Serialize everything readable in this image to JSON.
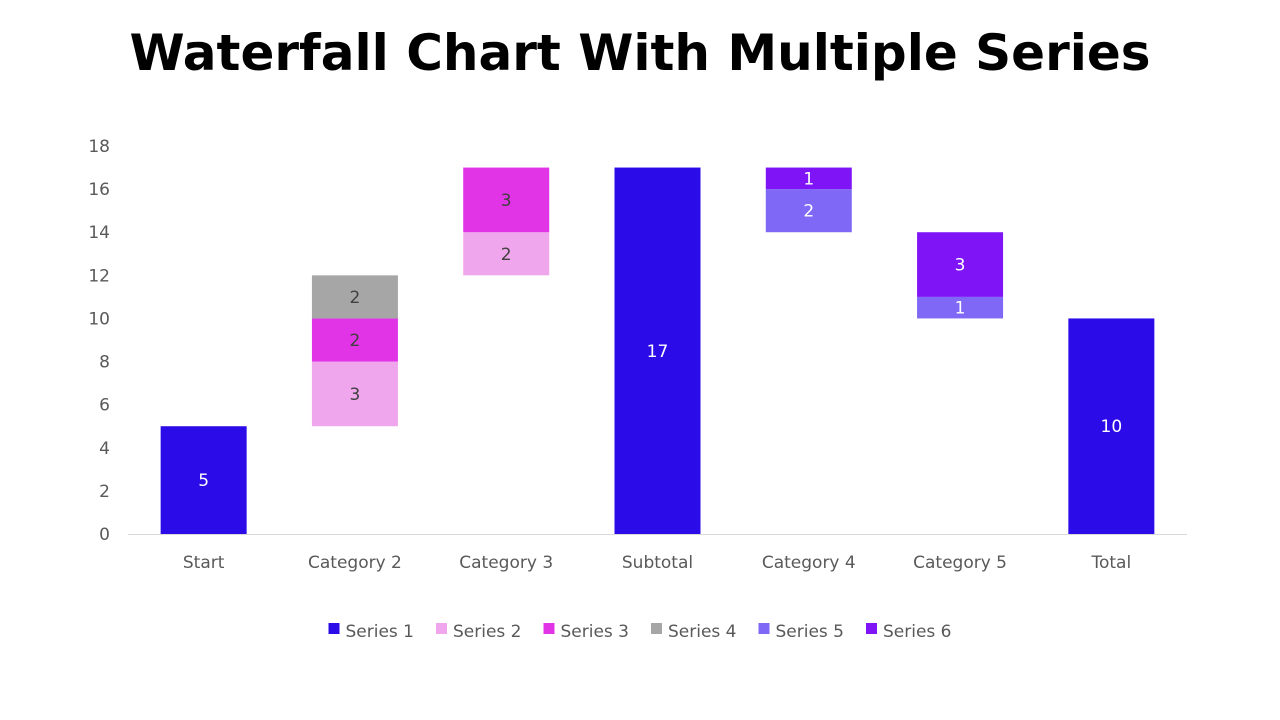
{
  "chart_data": {
    "type": "bar",
    "subtype": "stacked-waterfall",
    "title": "Waterfall Chart With Multiple Series",
    "xlabel": "",
    "ylabel": "",
    "ylim": [
      0,
      18
    ],
    "yticks": [
      0,
      2,
      4,
      6,
      8,
      10,
      12,
      14,
      16,
      18
    ],
    "grid": false,
    "legend_position": "bottom",
    "categories": [
      "Start",
      "Category 2",
      "Category 3",
      "Subtotal",
      "Category 4",
      "Category 5",
      "Total"
    ],
    "series": [
      {
        "name": "Series 1",
        "color": "#2B0CE8",
        "label_color": "#FFFFFF"
      },
      {
        "name": "Series 2",
        "color": "#F0A6EC",
        "label_color": "#404040"
      },
      {
        "name": "Series 3",
        "color": "#E034E6",
        "label_color": "#404040"
      },
      {
        "name": "Series 4",
        "color": "#A6A6A6",
        "label_color": "#404040"
      },
      {
        "name": "Series 5",
        "color": "#7E68F5",
        "label_color": "#FFFFFF"
      },
      {
        "name": "Series 6",
        "color": "#7F14F7",
        "label_color": "#FFFFFF"
      }
    ],
    "segments": [
      {
        "category": "Start",
        "series": "Series 1",
        "base": 0,
        "value": 5
      },
      {
        "category": "Category 2",
        "series": "Series 2",
        "base": 5,
        "value": 3
      },
      {
        "category": "Category 2",
        "series": "Series 3",
        "base": 8,
        "value": 2
      },
      {
        "category": "Category 2",
        "series": "Series 4",
        "base": 10,
        "value": 2
      },
      {
        "category": "Category 3",
        "series": "Series 2",
        "base": 12,
        "value": 2
      },
      {
        "category": "Category 3",
        "series": "Series 3",
        "base": 14,
        "value": 3
      },
      {
        "category": "Subtotal",
        "series": "Series 1",
        "base": 0,
        "value": 17
      },
      {
        "category": "Category 4",
        "series": "Series 5",
        "base": 14,
        "value": 2
      },
      {
        "category": "Category 4",
        "series": "Series 6",
        "base": 16,
        "value": 1
      },
      {
        "category": "Category 5",
        "series": "Series 5",
        "base": 10,
        "value": 1
      },
      {
        "category": "Category 5",
        "series": "Series 6",
        "base": 11,
        "value": 3
      },
      {
        "category": "Total",
        "series": "Series 1",
        "base": 0,
        "value": 10
      }
    ]
  }
}
